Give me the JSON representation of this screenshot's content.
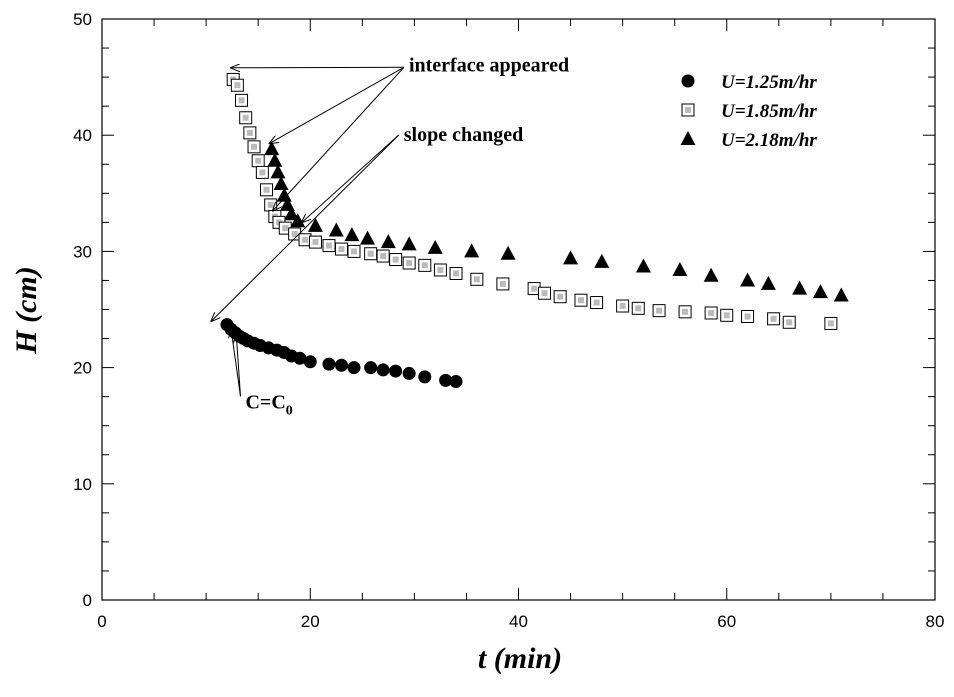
{
  "chart_data": {
    "type": "scatter",
    "xlabel": "t (min)",
    "ylabel": "H (cm)",
    "xlim": [
      0,
      80
    ],
    "ylim": [
      0,
      50
    ],
    "x_ticks": [
      0,
      20,
      40,
      60,
      80
    ],
    "y_ticks": [
      0,
      10,
      20,
      30,
      40,
      50
    ],
    "grid": false,
    "legend_position": "top-right",
    "series": [
      {
        "name": "U=1.25m/hr",
        "marker": "filled-circle",
        "color": "#000000",
        "points": [
          [
            12.0,
            23.7
          ],
          [
            12.4,
            23.3
          ],
          [
            12.8,
            23.0
          ],
          [
            13.2,
            22.7
          ],
          [
            13.6,
            22.5
          ],
          [
            14.0,
            22.3
          ],
          [
            14.6,
            22.1
          ],
          [
            15.2,
            21.9
          ],
          [
            16.0,
            21.7
          ],
          [
            16.8,
            21.5
          ],
          [
            17.5,
            21.3
          ],
          [
            18.2,
            21.0
          ],
          [
            19.0,
            20.8
          ],
          [
            20.0,
            20.5
          ],
          [
            21.8,
            20.3
          ],
          [
            23.0,
            20.2
          ],
          [
            24.2,
            20.0
          ],
          [
            25.8,
            20.0
          ],
          [
            27.0,
            19.8
          ],
          [
            28.2,
            19.7
          ],
          [
            29.5,
            19.5
          ],
          [
            31.0,
            19.2
          ],
          [
            33.0,
            18.9
          ],
          [
            34.0,
            18.8
          ]
        ]
      },
      {
        "name": "U=1.85m/hr",
        "marker": "open-square",
        "color": "#000000",
        "points": [
          [
            12.6,
            44.8
          ],
          [
            13.0,
            44.3
          ],
          [
            13.4,
            43.0
          ],
          [
            13.8,
            41.5
          ],
          [
            14.2,
            40.2
          ],
          [
            14.6,
            39.0
          ],
          [
            15.0,
            37.8
          ],
          [
            15.4,
            36.8
          ],
          [
            15.8,
            35.3
          ],
          [
            16.2,
            34.0
          ],
          [
            16.6,
            33.0
          ],
          [
            17.0,
            32.5
          ],
          [
            17.6,
            32.0
          ],
          [
            18.5,
            31.5
          ],
          [
            19.5,
            31.0
          ],
          [
            20.5,
            30.8
          ],
          [
            21.8,
            30.5
          ],
          [
            23.0,
            30.2
          ],
          [
            24.2,
            30.0
          ],
          [
            25.8,
            29.8
          ],
          [
            27.0,
            29.6
          ],
          [
            28.2,
            29.3
          ],
          [
            29.5,
            29.0
          ],
          [
            31.0,
            28.8
          ],
          [
            32.5,
            28.4
          ],
          [
            34.0,
            28.1
          ],
          [
            36.0,
            27.6
          ],
          [
            38.5,
            27.2
          ],
          [
            41.5,
            26.8
          ],
          [
            42.5,
            26.4
          ],
          [
            44.0,
            26.1
          ],
          [
            46.0,
            25.8
          ],
          [
            47.5,
            25.6
          ],
          [
            50.0,
            25.3
          ],
          [
            51.5,
            25.1
          ],
          [
            53.5,
            24.9
          ],
          [
            56.0,
            24.8
          ],
          [
            58.5,
            24.7
          ],
          [
            60.0,
            24.5
          ],
          [
            62.0,
            24.4
          ],
          [
            64.5,
            24.2
          ],
          [
            66.0,
            23.9
          ],
          [
            70.0,
            23.8
          ]
        ]
      },
      {
        "name": "U=2.18m/hr",
        "marker": "filled-triangle",
        "color": "#000000",
        "points": [
          [
            16.3,
            38.8
          ],
          [
            16.6,
            37.8
          ],
          [
            16.9,
            36.8
          ],
          [
            17.2,
            35.8
          ],
          [
            17.5,
            34.8
          ],
          [
            17.8,
            34.0
          ],
          [
            18.2,
            33.2
          ],
          [
            18.8,
            32.6
          ],
          [
            20.5,
            32.2
          ],
          [
            22.5,
            31.8
          ],
          [
            24.0,
            31.4
          ],
          [
            25.5,
            31.1
          ],
          [
            27.5,
            30.8
          ],
          [
            29.5,
            30.6
          ],
          [
            32.0,
            30.3
          ],
          [
            35.5,
            30.0
          ],
          [
            39.0,
            29.8
          ],
          [
            45.0,
            29.4
          ],
          [
            48.0,
            29.1
          ],
          [
            52.0,
            28.7
          ],
          [
            55.5,
            28.4
          ],
          [
            58.5,
            27.9
          ],
          [
            62.0,
            27.5
          ],
          [
            64.0,
            27.2
          ],
          [
            67.0,
            26.8
          ],
          [
            69.0,
            26.5
          ],
          [
            71.0,
            26.2
          ]
        ]
      }
    ],
    "annotations": [
      {
        "id": "interface",
        "text": "interface appeared",
        "anchor": [
          29.0,
          45.5
        ],
        "arrows_to": [
          [
            12.4,
            45.8
          ],
          [
            16.1,
            39.3
          ],
          [
            16.4,
            33.5
          ]
        ]
      },
      {
        "id": "slope",
        "text": "slope changed",
        "anchor": [
          28.5,
          39.5
        ],
        "arrows_to": [
          [
            19.2,
            32.5
          ],
          [
            10.5,
            24.0
          ]
        ]
      },
      {
        "id": "c0",
        "text": "C=C",
        "subscript": "0",
        "anchor": [
          13.3,
          16.5
        ],
        "arrows_to": [
          [
            12.4,
            23.3
          ],
          [
            12.9,
            22.8
          ]
        ]
      }
    ]
  }
}
